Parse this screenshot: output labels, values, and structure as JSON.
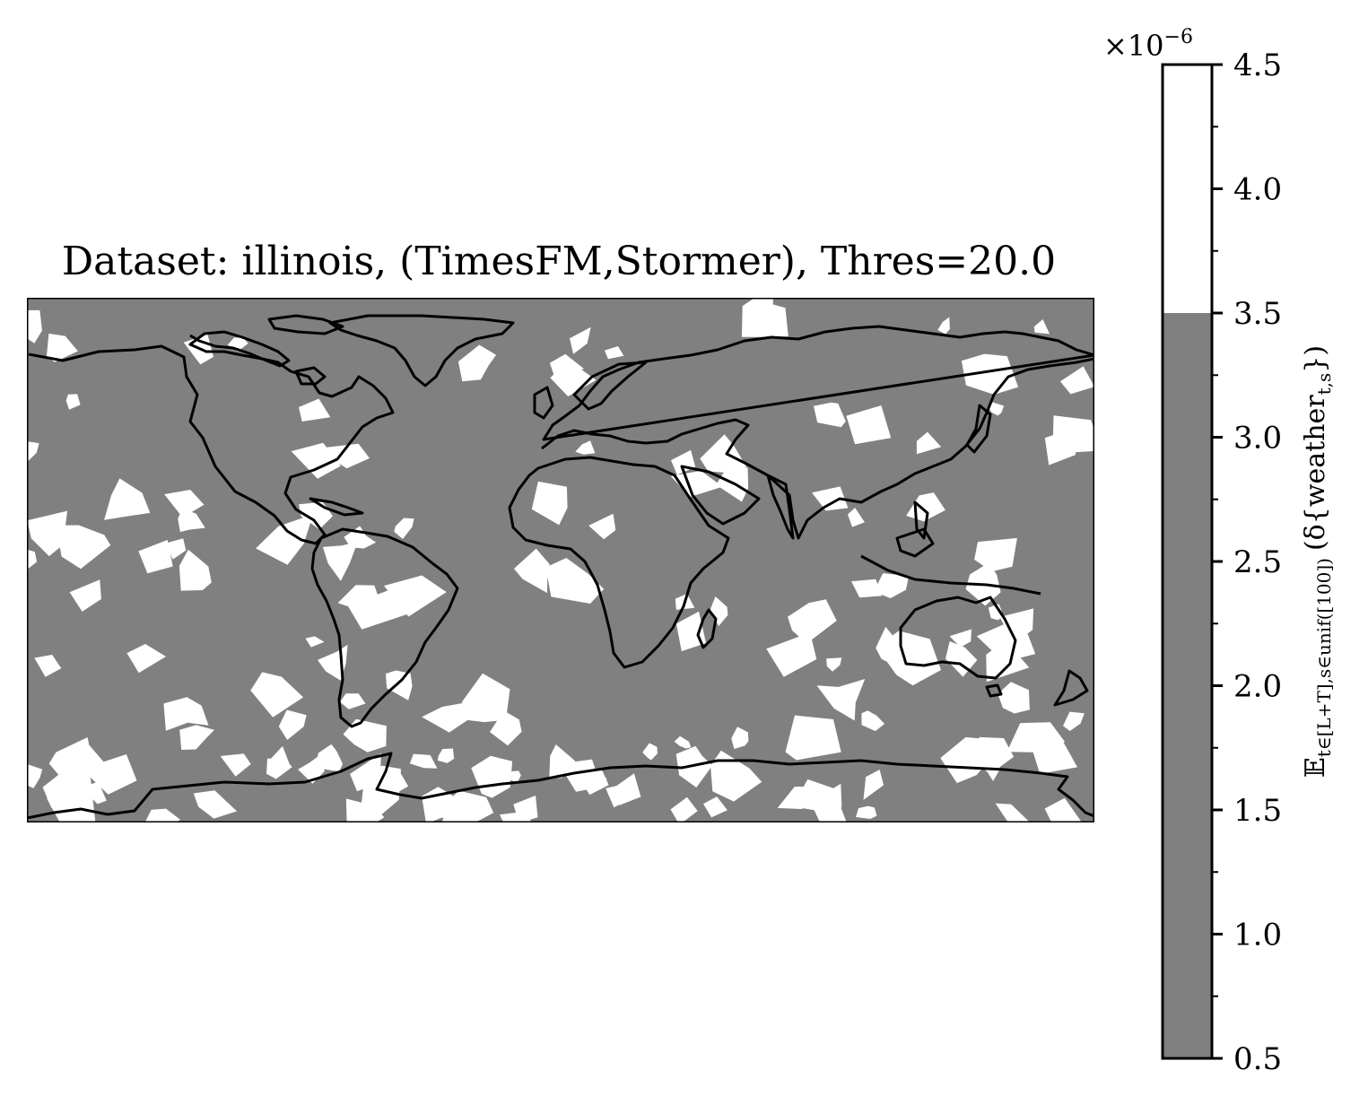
{
  "chart_data": {
    "type": "heatmap",
    "title": "Dataset: illinois, (TimesFM,Stormer), Thres=20.0",
    "map": "world coastlines, equirectangular",
    "levels": [
      {
        "range": [
          0.5,
          3.5
        ],
        "color": "#808080",
        "label": "below 3.5"
      },
      {
        "range": [
          3.5,
          4.5
        ],
        "color": "#ffffff",
        "label": "3.5 to 4.5"
      }
    ],
    "colorbar": {
      "label": "𝔼_{t∈[L+T], s∈unif([100])} (δ{weather_{t,s}})",
      "label_main": "𝔼",
      "label_sub": "t∈[L+T],s∈unif([100])",
      "label_paren": "(δ{weather",
      "label_sub2": "t,s",
      "label_close": "})",
      "multiplier": "×10",
      "multiplier_exp": "−6",
      "ticks": [
        "0.5",
        "1.0",
        "1.5",
        "2.0",
        "2.5",
        "3.0",
        "3.5",
        "4.0",
        "4.5"
      ],
      "range": [
        0.5,
        4.5
      ]
    },
    "colors": {
      "below": "#808080",
      "above": "#ffffff",
      "coast": "#000000"
    }
  }
}
